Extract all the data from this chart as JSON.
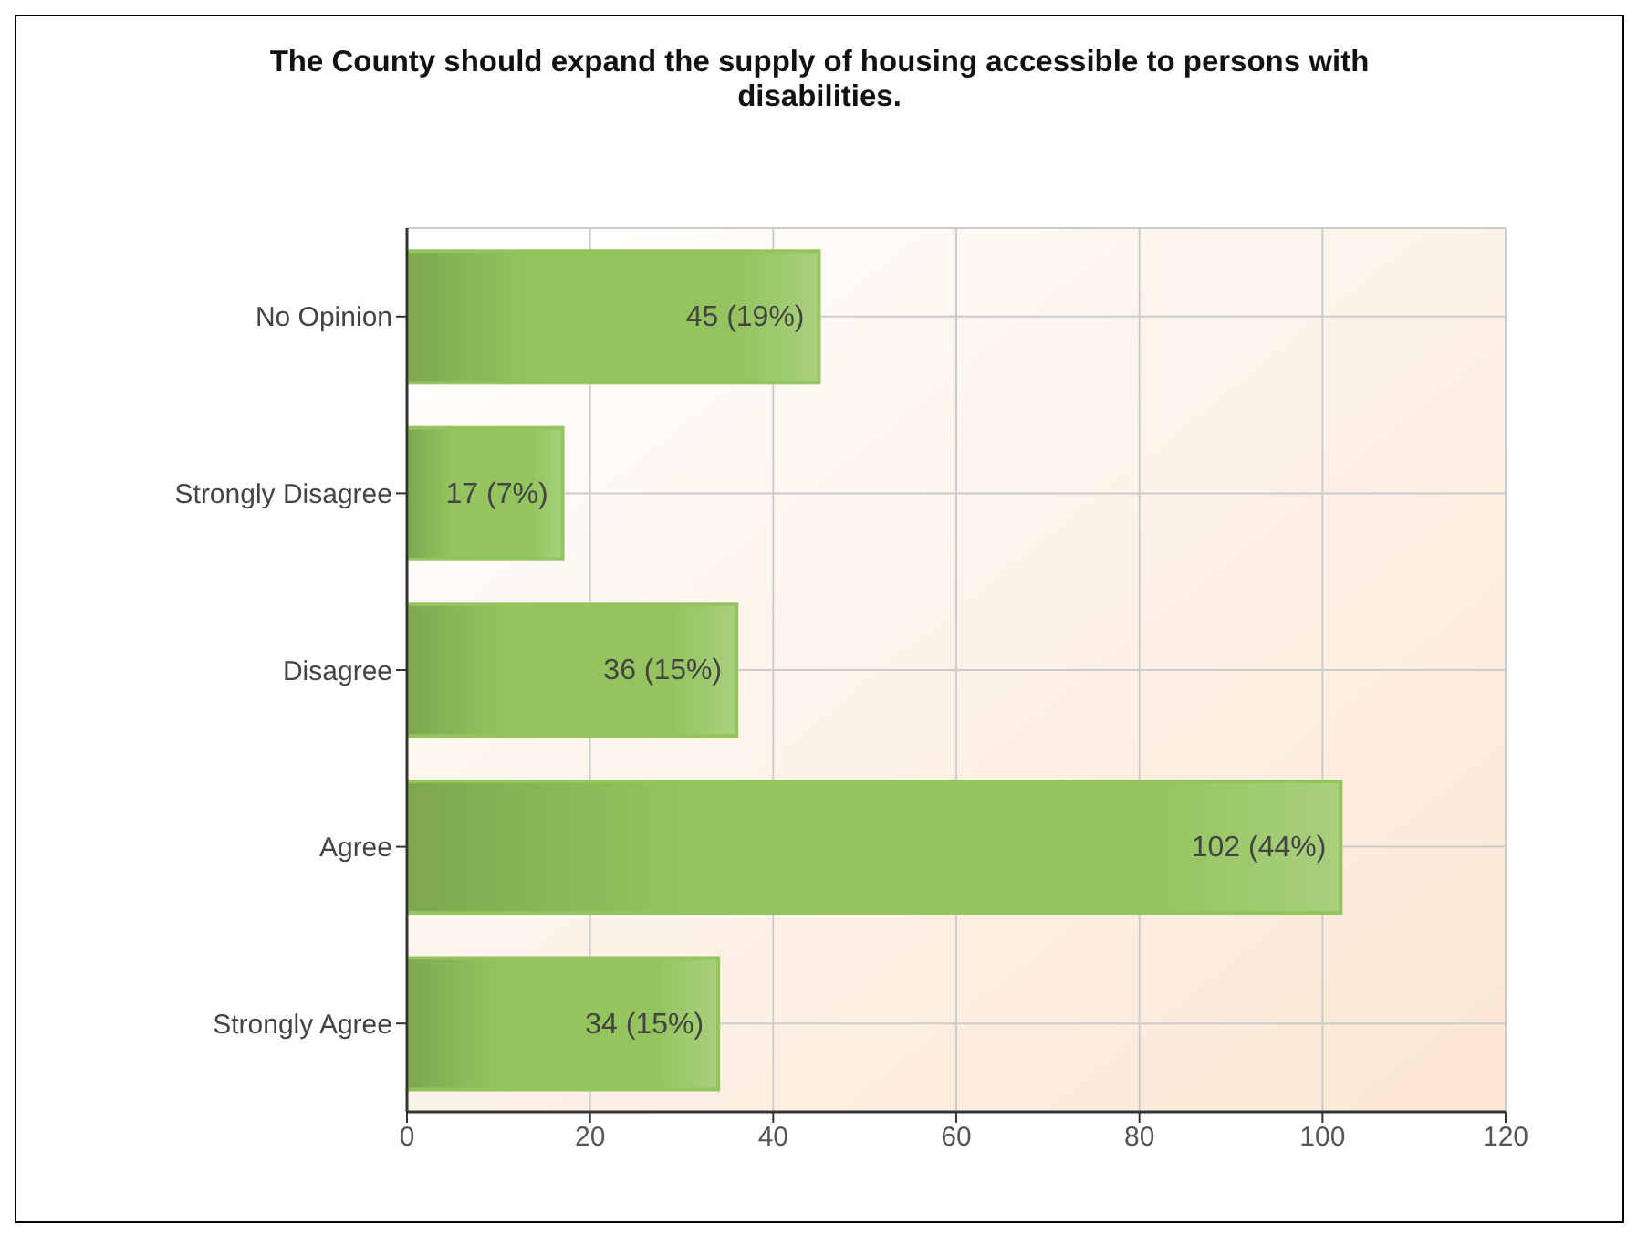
{
  "chart_data": {
    "type": "bar",
    "orientation": "horizontal",
    "title": "The County should expand the supply of housing accessible to persons with disabilities.",
    "categories": [
      "No Opinion",
      "Strongly Disagree",
      "Disagree",
      "Agree",
      "Strongly Agree"
    ],
    "values": [
      45,
      17,
      36,
      102,
      34
    ],
    "value_labels": [
      "45 (19%)",
      "17 (7%)",
      "36 (15%)",
      "102 (44%)",
      "34 (15%)"
    ],
    "color": "#94c45e",
    "xlim": [
      0,
      120
    ],
    "xticks": [
      0,
      20,
      40,
      60,
      80,
      100,
      120
    ],
    "grid": true
  }
}
